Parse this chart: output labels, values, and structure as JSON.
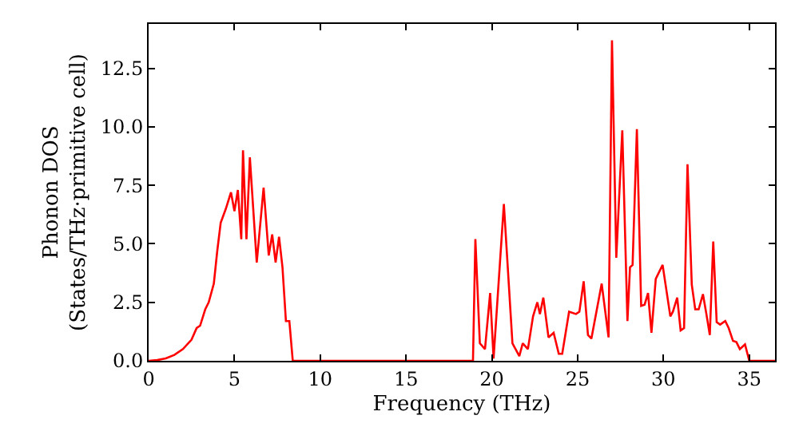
{
  "chart_data": {
    "type": "line",
    "xlabel": "Frequency (THz)",
    "ylabel": "Phonon DOS\n(States/THz·primitive cell)",
    "xlim": [
      0,
      36.5
    ],
    "ylim": [
      0,
      14.4
    ],
    "xticks": [
      0,
      5,
      10,
      15,
      20,
      25,
      30,
      35
    ],
    "yticks": [
      {
        "value": 0,
        "label": "0.0"
      },
      {
        "value": 2.5,
        "label": "2.5"
      },
      {
        "value": 5,
        "label": "5.0"
      },
      {
        "value": 7.5,
        "label": "7.5"
      },
      {
        "value": 10,
        "label": "10.0"
      },
      {
        "value": 12.5,
        "label": "12.5"
      }
    ],
    "marker": "none",
    "line_style": "solid",
    "series": [
      {
        "color": "#ff0000",
        "x": [
          0,
          0.5,
          1,
          1.5,
          2,
          2.5,
          2.8,
          3.0,
          3.3,
          3.5,
          3.8,
          4.0,
          4.2,
          4.5,
          4.8,
          5.0,
          5.2,
          5.4,
          5.5,
          5.7,
          5.9,
          6.3,
          6.7,
          7.0,
          7.2,
          7.4,
          7.6,
          7.8,
          8.0,
          8.2,
          8.4,
          18.9,
          19.04,
          19.3,
          19.6,
          19.9,
          20.1,
          20.7,
          21.2,
          21.6,
          21.8,
          22.1,
          22.4,
          22.65,
          22.8,
          23.0,
          23.3,
          23.6,
          23.9,
          24.1,
          24.5,
          24.9,
          25.1,
          25.35,
          25.6,
          25.8,
          26.4,
          26.8,
          27.0,
          27.25,
          27.6,
          27.9,
          28.05,
          28.2,
          28.45,
          28.7,
          28.9,
          29.1,
          29.3,
          29.55,
          29.95,
          30.4,
          30.55,
          30.8,
          31.0,
          31.2,
          31.4,
          31.65,
          31.85,
          32.05,
          32.3,
          32.5,
          32.7,
          32.9,
          33.1,
          33.3,
          33.6,
          33.8,
          34.05,
          34.25,
          34.45,
          34.75,
          35.0,
          36.5
        ],
        "values": [
          0,
          0.03,
          0.1,
          0.25,
          0.5,
          0.9,
          1.4,
          1.5,
          2.2,
          2.5,
          3.3,
          4.7,
          5.9,
          6.5,
          7.2,
          6.4,
          7.3,
          5.2,
          9.0,
          5.2,
          8.7,
          4.2,
          7.4,
          4.5,
          5.4,
          4.2,
          5.3,
          4.0,
          1.7,
          1.7,
          0,
          0,
          5.2,
          0.75,
          0.5,
          2.9,
          0.1,
          6.7,
          0.75,
          0.2,
          0.75,
          0.5,
          1.9,
          2.5,
          2.0,
          2.7,
          1.0,
          1.2,
          0.3,
          0.3,
          2.1,
          2.0,
          2.1,
          3.4,
          1.1,
          0.95,
          3.3,
          1.0,
          13.7,
          4.4,
          9.85,
          1.7,
          4.0,
          4.1,
          9.9,
          2.35,
          2.4,
          2.9,
          1.2,
          3.5,
          4.1,
          1.9,
          2.1,
          2.7,
          1.3,
          1.4,
          8.4,
          3.25,
          2.2,
          2.2,
          2.85,
          2.0,
          1.1,
          5.1,
          1.65,
          1.55,
          1.7,
          1.4,
          0.85,
          0.8,
          0.5,
          0.7,
          0,
          0
        ]
      }
    ]
  }
}
